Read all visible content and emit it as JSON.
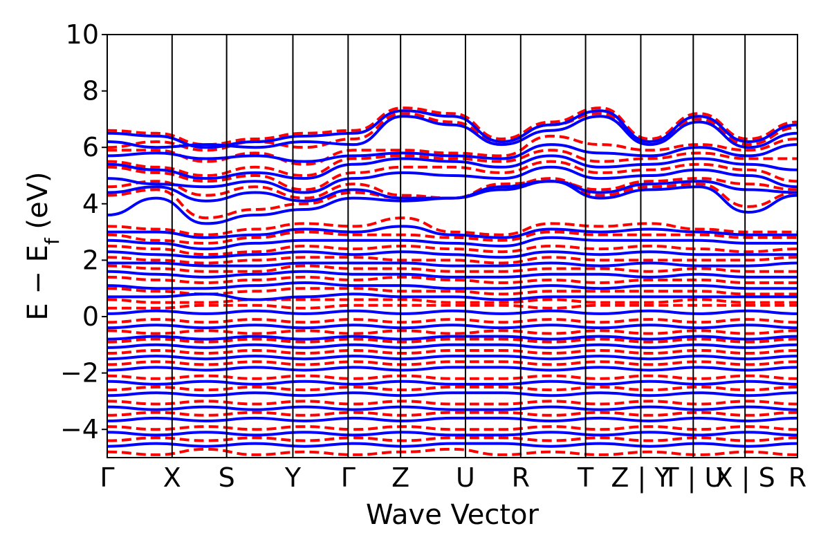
{
  "chart_data": {
    "type": "line",
    "title": "",
    "xlabel": "Wave Vector",
    "ylabel_parts": {
      "main": "E − E",
      "subscript": "f",
      "unit": " (eV)"
    },
    "ylim": [
      -5,
      10
    ],
    "yticks": [
      10,
      8,
      6,
      4,
      2,
      0,
      -2,
      -4
    ],
    "ytick_labels": [
      "10",
      "8",
      "6",
      "4",
      "2",
      "0",
      "−2",
      "−4"
    ],
    "grid": false,
    "legend": "none",
    "high_symbol_points": [
      {
        "label": "Γ",
        "x": 0.0
      },
      {
        "label": "X",
        "x": 0.94
      },
      {
        "label": "S",
        "x": 1.73
      },
      {
        "label": "Y",
        "x": 2.69
      },
      {
        "label": "Γ",
        "x": 3.49
      },
      {
        "label": "Z",
        "x": 4.25
      },
      {
        "label": "U",
        "x": 5.19
      },
      {
        "label": "R",
        "x": 5.99
      },
      {
        "label": "T",
        "x": 6.93
      },
      {
        "label": "Z | Y",
        "x": 7.73
      },
      {
        "label": "T | U",
        "x": 8.49
      },
      {
        "label": "X | S",
        "x": 9.24
      },
      {
        "label": "R",
        "x": 10.0
      }
    ],
    "xlim": [
      0,
      10
    ],
    "series": [
      {
        "style": "dashed",
        "color": "#ff0000",
        "width": 4,
        "bands": [
          [
            6.6,
            6.5,
            6.1,
            6.3,
            6.5,
            6.6,
            7.4,
            7.2,
            6.3,
            6.9,
            7.4,
            6.3,
            7.2,
            6.3,
            6.9
          ],
          [
            6.0,
            6.2,
            5.9,
            6.2,
            6.0,
            6.3,
            7.2,
            6.9,
            6.2,
            6.8,
            7.2,
            6.2,
            7.0,
            6.1,
            6.7
          ],
          [
            5.9,
            5.9,
            5.5,
            5.8,
            5.4,
            5.9,
            5.9,
            5.8,
            5.7,
            6.4,
            6.1,
            5.9,
            6.1,
            5.9,
            6.3
          ],
          [
            5.5,
            5.3,
            5.0,
            5.3,
            5.0,
            5.6,
            5.7,
            5.6,
            5.5,
            5.9,
            5.5,
            5.6,
            5.8,
            5.6,
            5.6
          ],
          [
            5.3,
            5.1,
            4.8,
            5.0,
            4.5,
            5.1,
            5.3,
            5.3,
            5.1,
            5.5,
            5.1,
            5.2,
            5.4,
            5.2,
            4.8
          ],
          [
            4.6,
            4.8,
            4.3,
            4.6,
            4.2,
            4.7,
            4.3,
            4.2,
            4.7,
            4.8,
            4.5,
            4.8,
            4.9,
            4.7,
            4.5
          ],
          [
            4.3,
            4.5,
            3.5,
            3.8,
            4.0,
            4.4,
            4.2,
            4.2,
            4.6,
            4.9,
            4.3,
            4.6,
            4.7,
            3.9,
            4.4
          ],
          [
            3.2,
            3.1,
            2.9,
            3.1,
            3.3,
            3.2,
            3.5,
            3.0,
            2.9,
            3.3,
            3.2,
            3.3,
            3.1,
            3.0,
            3.0
          ],
          [
            2.9,
            2.7,
            2.6,
            2.8,
            3.0,
            2.9,
            2.9,
            2.8,
            2.7,
            3.0,
            2.9,
            2.9,
            2.9,
            2.8,
            2.8
          ],
          [
            2.5,
            2.4,
            2.2,
            2.3,
            2.5,
            2.4,
            2.5,
            2.4,
            2.3,
            2.5,
            2.4,
            2.5,
            2.4,
            2.3,
            2.4
          ],
          [
            2.1,
            2.0,
            1.9,
            2.0,
            2.1,
            2.1,
            2.0,
            2.0,
            1.9,
            2.1,
            2.0,
            2.0,
            2.0,
            2.0,
            2.1
          ],
          [
            1.8,
            1.7,
            1.6,
            1.6,
            1.8,
            1.7,
            1.7,
            1.6,
            1.6,
            1.7,
            1.7,
            1.6,
            1.7,
            1.6,
            1.6
          ],
          [
            1.4,
            1.3,
            1.2,
            1.3,
            1.4,
            1.3,
            1.4,
            1.3,
            1.2,
            1.3,
            1.2,
            1.3,
            1.3,
            1.2,
            1.2
          ],
          [
            1.0,
            0.9,
            0.8,
            0.9,
            1.0,
            1.0,
            0.9,
            0.9,
            0.8,
            0.9,
            0.9,
            0.9,
            0.9,
            0.8,
            0.8
          ],
          [
            0.6,
            0.5,
            0.5,
            0.6,
            0.6,
            0.6,
            0.6,
            0.5,
            0.5,
            0.6,
            0.5,
            0.5,
            0.6,
            0.5,
            0.5
          ],
          [
            0.3,
            0.3,
            0.4,
            0.4,
            0.3,
            0.4,
            0.4,
            0.4,
            0.4,
            0.3,
            0.4,
            0.4,
            0.4,
            0.4,
            0.4
          ],
          [
            -0.2,
            -0.1,
            -0.2,
            -0.1,
            -0.2,
            -0.1,
            -0.2,
            -0.1,
            -0.2,
            -0.1,
            -0.2,
            -0.1,
            -0.2,
            -0.1,
            -0.2
          ],
          [
            -0.5,
            -0.6,
            -0.5,
            -0.6,
            -0.5,
            -0.6,
            -0.5,
            -0.6,
            -0.5,
            -0.6,
            -0.5,
            -0.6,
            -0.5,
            -0.6,
            -0.5
          ],
          [
            -0.9,
            -0.8,
            -0.9,
            -0.8,
            -0.9,
            -0.8,
            -0.9,
            -0.8,
            -0.8,
            -0.9,
            -0.8,
            -0.9,
            -0.8,
            -0.9,
            -0.8
          ],
          [
            -1.3,
            -1.2,
            -1.3,
            -1.2,
            -1.3,
            -1.2,
            -1.3,
            -1.2,
            -1.2,
            -1.3,
            -1.2,
            -1.3,
            -1.2,
            -1.3,
            -1.2
          ],
          [
            -1.7,
            -1.6,
            -1.7,
            -1.6,
            -1.7,
            -1.6,
            -1.7,
            -1.6,
            -1.6,
            -1.7,
            -1.6,
            -1.7,
            -1.6,
            -1.7,
            -1.6
          ],
          [
            -2.1,
            -2.2,
            -2.1,
            -2.2,
            -2.1,
            -2.2,
            -2.1,
            -2.2,
            -2.2,
            -2.1,
            -2.2,
            -2.1,
            -2.2,
            -2.1,
            -2.2
          ],
          [
            -2.6,
            -2.5,
            -2.6,
            -2.5,
            -2.6,
            -2.5,
            -2.6,
            -2.5,
            -2.5,
            -2.6,
            -2.5,
            -2.6,
            -2.5,
            -2.6,
            -2.5
          ],
          [
            -3.0,
            -3.1,
            -3.0,
            -3.1,
            -3.0,
            -3.1,
            -3.0,
            -3.1,
            -3.1,
            -3.0,
            -3.1,
            -3.0,
            -3.1,
            -3.0,
            -3.1
          ],
          [
            -3.5,
            -3.4,
            -3.5,
            -3.4,
            -3.5,
            -3.4,
            -3.5,
            -3.4,
            -3.4,
            -3.5,
            -3.4,
            -3.5,
            -3.4,
            -3.5,
            -3.4
          ],
          [
            -3.9,
            -4.0,
            -3.9,
            -4.0,
            -3.9,
            -4.0,
            -3.9,
            -4.0,
            -4.0,
            -3.9,
            -4.0,
            -3.9,
            -4.0,
            -3.9,
            -4.0
          ],
          [
            -4.4,
            -4.3,
            -4.4,
            -4.3,
            -4.4,
            -4.3,
            -4.4,
            -4.3,
            -4.3,
            -4.4,
            -4.3,
            -4.4,
            -4.3,
            -4.4,
            -4.3
          ],
          [
            -4.8,
            -4.9,
            -4.7,
            -4.9,
            -4.8,
            -4.9,
            -4.8,
            -4.7,
            -4.9,
            -4.8,
            -4.9,
            -4.8,
            -4.9,
            -4.8,
            -4.9
          ]
        ]
      },
      {
        "style": "solid",
        "color": "#0000ff",
        "width": 4,
        "bands": [
          [
            6.5,
            6.4,
            6.0,
            6.2,
            6.4,
            6.5,
            7.3,
            7.1,
            6.2,
            6.8,
            7.3,
            6.2,
            7.1,
            6.2,
            6.8
          ],
          [
            6.2,
            6.0,
            6.1,
            6.0,
            6.2,
            6.1,
            7.1,
            6.8,
            6.1,
            6.6,
            7.1,
            6.1,
            6.9,
            6.0,
            6.5
          ],
          [
            5.7,
            5.8,
            5.6,
            5.7,
            5.5,
            5.7,
            5.8,
            5.7,
            5.6,
            6.1,
            5.8,
            5.7,
            6.0,
            5.7,
            6.1
          ],
          [
            5.4,
            5.2,
            4.9,
            5.1,
            4.9,
            5.4,
            5.6,
            5.5,
            5.3,
            5.7,
            5.3,
            5.4,
            5.6,
            5.4,
            5.2
          ],
          [
            4.9,
            4.7,
            4.6,
            4.8,
            4.4,
            4.9,
            5.1,
            5.0,
            4.9,
            5.3,
            4.9,
            5.0,
            5.2,
            5.0,
            4.6
          ],
          [
            4.4,
            4.6,
            4.1,
            4.4,
            4.1,
            4.5,
            4.2,
            4.2,
            4.6,
            4.8,
            4.4,
            4.7,
            4.8,
            4.5,
            4.4
          ],
          [
            3.6,
            4.2,
            3.3,
            3.6,
            3.8,
            4.2,
            4.1,
            4.2,
            4.5,
            4.8,
            4.2,
            4.5,
            4.6,
            3.7,
            4.3
          ],
          [
            3.0,
            3.0,
            2.8,
            2.9,
            3.1,
            3.0,
            3.2,
            2.9,
            2.8,
            3.1,
            3.0,
            3.1,
            3.0,
            2.9,
            2.9
          ],
          [
            2.7,
            2.6,
            2.4,
            2.6,
            2.7,
            2.7,
            2.7,
            2.6,
            2.5,
            2.8,
            2.7,
            2.7,
            2.7,
            2.6,
            2.6
          ],
          [
            2.3,
            2.2,
            2.1,
            2.2,
            2.3,
            2.2,
            2.3,
            2.2,
            2.1,
            2.3,
            2.2,
            2.3,
            2.2,
            2.2,
            2.2
          ],
          [
            1.9,
            1.9,
            1.8,
            1.8,
            1.9,
            1.9,
            1.9,
            1.8,
            1.8,
            1.9,
            1.8,
            1.9,
            1.8,
            1.8,
            1.9
          ],
          [
            1.6,
            1.5,
            1.4,
            1.5,
            1.6,
            1.5,
            1.5,
            1.4,
            1.4,
            1.5,
            1.5,
            1.4,
            1.5,
            1.4,
            1.4
          ],
          [
            1.1,
            1.0,
            1.0,
            1.1,
            1.2,
            1.1,
            1.1,
            1.0,
            1.0,
            1.1,
            1.0,
            1.1,
            1.1,
            1.0,
            1.0
          ],
          [
            0.7,
            0.7,
            0.8,
            0.6,
            0.7,
            0.8,
            0.7,
            0.7,
            0.6,
            0.7,
            0.7,
            0.7,
            0.7,
            0.7,
            0.7
          ],
          [
            0.1,
            0.2,
            0.1,
            0.2,
            0.1,
            0.2,
            0.1,
            0.2,
            0.1,
            0.2,
            0.1,
            0.2,
            0.1,
            0.2,
            0.1
          ],
          [
            -0.4,
            -0.3,
            -0.4,
            -0.3,
            -0.4,
            -0.3,
            -0.4,
            -0.3,
            -0.4,
            -0.3,
            -0.4,
            -0.3,
            -0.4,
            -0.3,
            -0.4
          ],
          [
            -0.8,
            -0.7,
            -0.8,
            -0.7,
            -0.8,
            -0.7,
            -0.8,
            -0.7,
            -0.7,
            -0.8,
            -0.7,
            -0.8,
            -0.7,
            -0.8,
            -0.7
          ],
          [
            -1.1,
            -1.0,
            -1.1,
            -1.0,
            -1.1,
            -1.0,
            -1.1,
            -1.0,
            -1.0,
            -1.1,
            -1.0,
            -1.1,
            -1.0,
            -1.1,
            -1.0
          ],
          [
            -1.5,
            -1.4,
            -1.5,
            -1.4,
            -1.5,
            -1.4,
            -1.5,
            -1.4,
            -1.4,
            -1.5,
            -1.4,
            -1.5,
            -1.4,
            -1.5,
            -1.4
          ],
          [
            -1.9,
            -1.8,
            -1.9,
            -1.8,
            -1.9,
            -1.8,
            -1.9,
            -1.8,
            -1.8,
            -1.9,
            -1.8,
            -1.9,
            -1.8,
            -1.9,
            -1.8
          ],
          [
            -2.3,
            -2.4,
            -2.3,
            -2.4,
            -2.3,
            -2.4,
            -2.3,
            -2.4,
            -2.4,
            -2.3,
            -2.4,
            -2.3,
            -2.4,
            -2.3,
            -2.4
          ],
          [
            -2.8,
            -2.7,
            -2.8,
            -2.7,
            -2.8,
            -2.7,
            -2.8,
            -2.7,
            -2.7,
            -2.8,
            -2.7,
            -2.8,
            -2.7,
            -2.8,
            -2.7
          ],
          [
            -3.2,
            -3.3,
            -3.2,
            -3.3,
            -3.2,
            -3.3,
            -3.2,
            -3.3,
            -3.3,
            -3.2,
            -3.3,
            -3.2,
            -3.3,
            -3.2,
            -3.3
          ],
          [
            -3.7,
            -3.6,
            -3.7,
            -3.6,
            -3.7,
            -3.6,
            -3.7,
            -3.6,
            -3.6,
            -3.7,
            -3.6,
            -3.7,
            -3.6,
            -3.7,
            -3.6
          ],
          [
            -4.1,
            -4.2,
            -4.1,
            -4.2,
            -4.1,
            -4.2,
            -4.1,
            -4.2,
            -4.2,
            -4.1,
            -4.2,
            -4.1,
            -4.2,
            -4.1,
            -4.2
          ],
          [
            -4.6,
            -4.5,
            -4.6,
            -4.5,
            -4.6,
            -4.5,
            -4.6,
            -4.5,
            -4.5,
            -4.6,
            -4.5,
            -4.6,
            -4.5,
            -4.6,
            -4.5
          ]
        ]
      }
    ]
  }
}
